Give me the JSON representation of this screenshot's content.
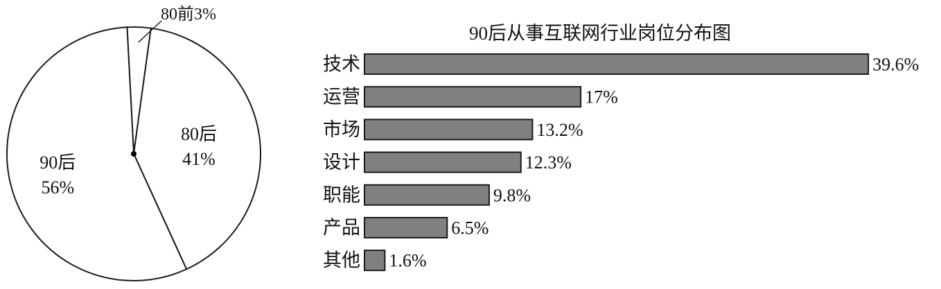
{
  "chart_data": [
    {
      "type": "pie",
      "title": "",
      "slices": [
        {
          "name": "80前",
          "value": 3,
          "label": "80前3%"
        },
        {
          "name": "80后",
          "value": 41,
          "label_name": "80后",
          "label_value": "41%"
        },
        {
          "name": "90后",
          "value": 56,
          "label_name": "90后",
          "label_value": "56%"
        }
      ],
      "fill": "#ffffff",
      "stroke": "#1a1a1a"
    },
    {
      "type": "bar",
      "orientation": "horizontal",
      "title": "90后从事互联网行业岗位分布图",
      "categories": [
        "技术",
        "运营",
        "市场",
        "设计",
        "职能",
        "产品",
        "其他"
      ],
      "values": [
        39.6,
        17,
        13.2,
        12.3,
        9.8,
        6.5,
        1.6
      ],
      "value_labels": [
        "39.6%",
        "17%",
        "13.2%",
        "12.3%",
        "9.8%",
        "6.5%",
        "1.6%"
      ],
      "bar_color": "#808080",
      "bar_stroke": "#1a1a1a"
    }
  ]
}
